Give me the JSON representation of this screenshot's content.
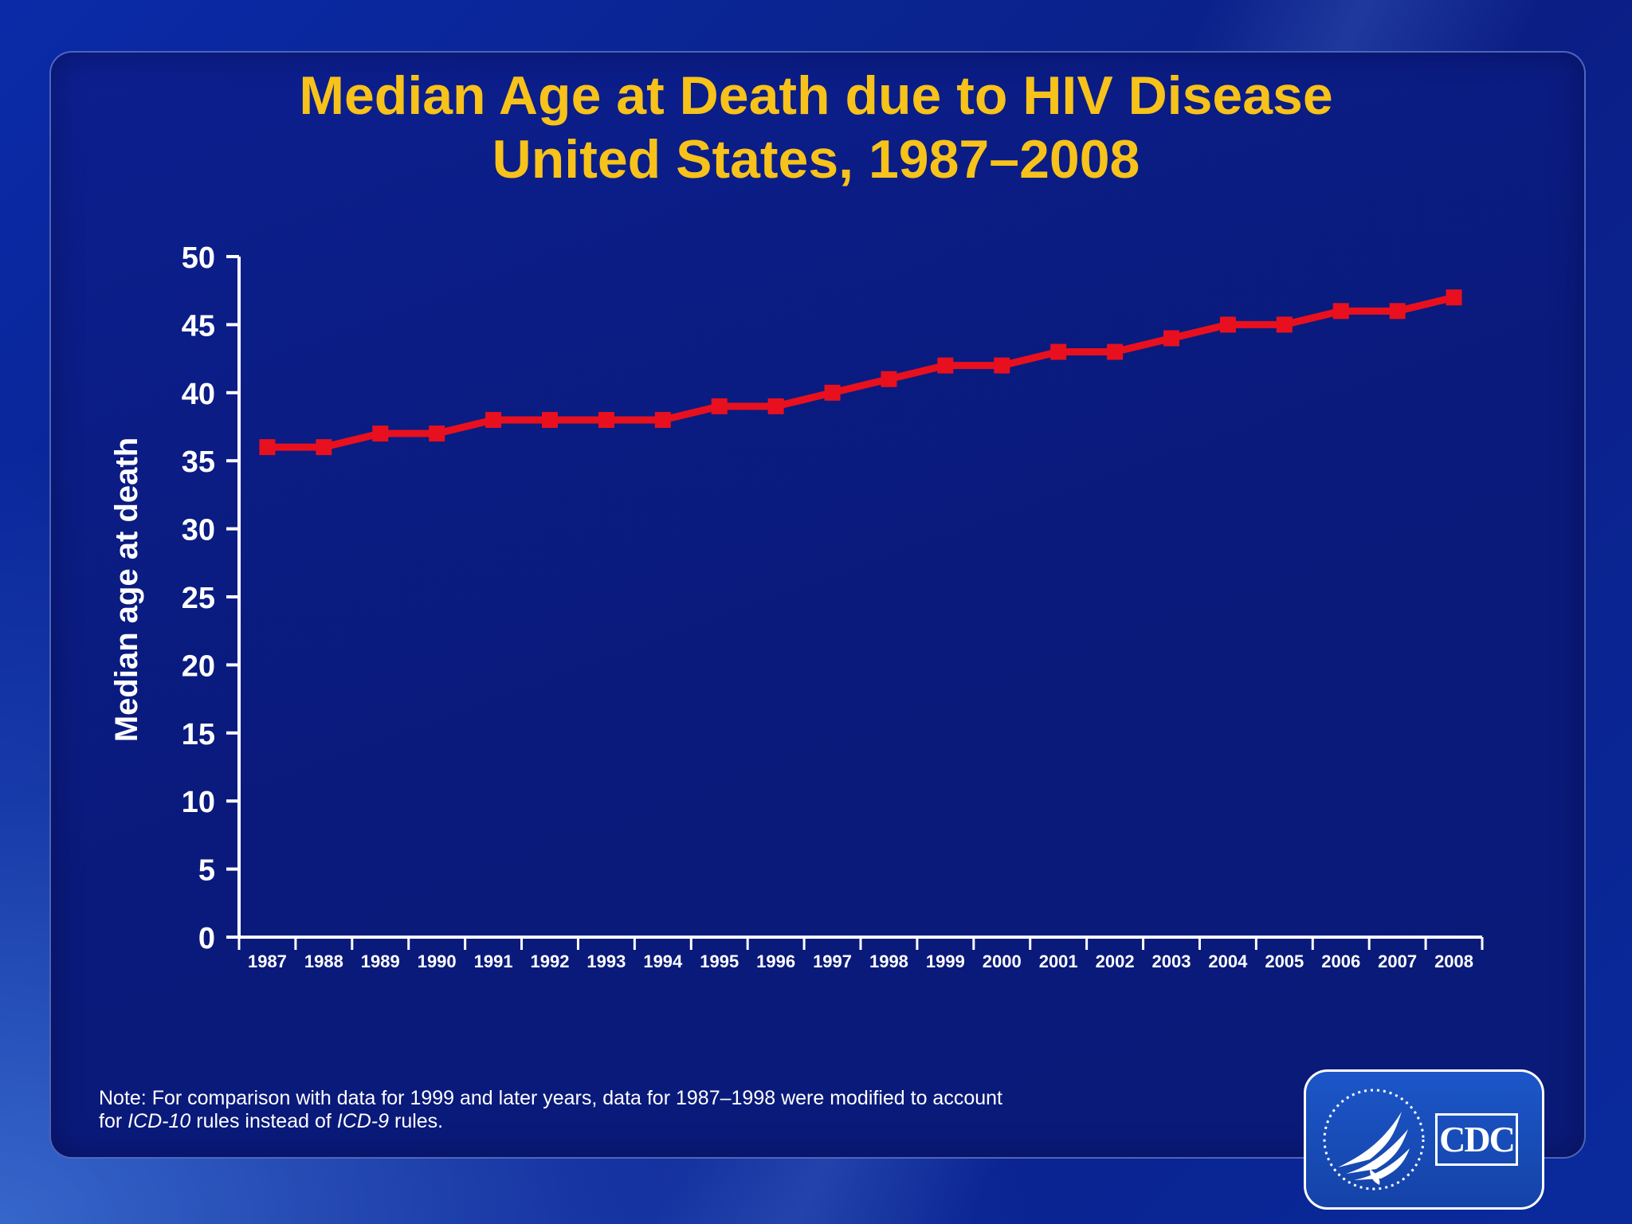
{
  "title": {
    "line1": "Median Age at Death due to HIV Disease",
    "line2": "United States, 1987–2008"
  },
  "note": {
    "part1": "Note: For comparison with data for 1999 and later years, data for 1987–1998 were modified to account",
    "part2": "for ",
    "icd10": "ICD-10",
    "part3": " rules instead of ",
    "icd9": "ICD-9",
    "part4": " rules."
  },
  "logo": {
    "cdc_text": "CDC",
    "seal_icon": "hhs-eagle-seal-icon"
  },
  "colors": {
    "title": "#f7c21a",
    "line": "#e8101e",
    "axis": "#ffffff"
  },
  "chart_data": {
    "type": "line",
    "title": "Median Age at Death due to HIV Disease United States, 1987–2008",
    "xlabel": "",
    "ylabel": "Median age at death",
    "ylim": [
      0,
      50
    ],
    "yticks": [
      0,
      5,
      10,
      15,
      20,
      25,
      30,
      35,
      40,
      45,
      50
    ],
    "grid": false,
    "legend": "none",
    "categories": [
      "1987",
      "1988",
      "1989",
      "1990",
      "1991",
      "1992",
      "1993",
      "1994",
      "1995",
      "1996",
      "1997",
      "1998",
      "1999",
      "2000",
      "2001",
      "2002",
      "2003",
      "2004",
      "2005",
      "2006",
      "2007",
      "2008"
    ],
    "series": [
      {
        "name": "Median age at death",
        "values": [
          36,
          36,
          37,
          37,
          38,
          38,
          38,
          38,
          39,
          39,
          40,
          41,
          42,
          42,
          43,
          43,
          44,
          45,
          45,
          46,
          46,
          47
        ]
      }
    ]
  }
}
